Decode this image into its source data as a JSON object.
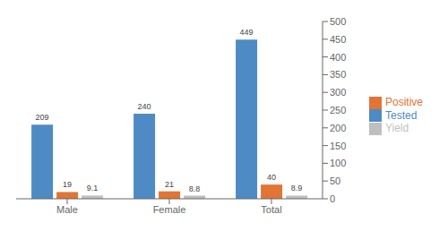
{
  "chart_data": {
    "type": "bar",
    "categories": [
      "Male",
      "Female",
      "Total"
    ],
    "series": [
      {
        "name": "Tested",
        "color": "#4E8BC4",
        "values": [
          209,
          240,
          449
        ]
      },
      {
        "name": "Positive",
        "color": "#E07535",
        "values": [
          19,
          21,
          40
        ]
      },
      {
        "name": "Yield",
        "color": "#BFBFBF",
        "values": [
          9.1,
          8.8,
          8.9
        ]
      }
    ],
    "ylim": [
      0,
      500
    ],
    "yticks": [
      0,
      50,
      100,
      150,
      200,
      250,
      300,
      350,
      400,
      450,
      500
    ],
    "grid": false,
    "legend": "right",
    "data_labels": true
  }
}
